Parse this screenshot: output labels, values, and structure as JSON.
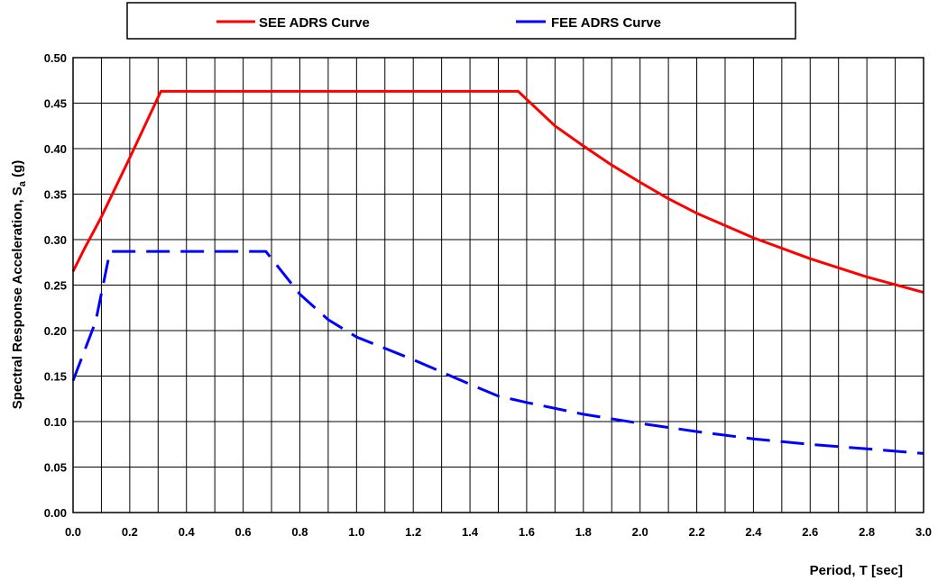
{
  "chart_data": {
    "type": "line",
    "title": "",
    "xlabel": "Period, T [sec]",
    "ylabel": {
      "prefix": "Spectral Response Acceleration, S",
      "subscript": "a",
      "suffix": " (g)"
    },
    "xlim": [
      0,
      3.0
    ],
    "ylim": [
      0,
      0.5
    ],
    "x_ticks": [
      "0.0",
      "0.2",
      "0.4",
      "0.6",
      "0.8",
      "1.0",
      "1.2",
      "1.4",
      "1.6",
      "1.8",
      "2.0",
      "2.2",
      "2.4",
      "2.6",
      "2.8",
      "3.0"
    ],
    "y_ticks": [
      "0.00",
      "0.05",
      "0.10",
      "0.15",
      "0.20",
      "0.25",
      "0.30",
      "0.35",
      "0.40",
      "0.45",
      "0.50"
    ],
    "grid": true,
    "legend_position": "top",
    "series": [
      {
        "name": "SEE ADRS Curve",
        "color": "#ff0000",
        "style": "solid",
        "x": [
          0.0,
          0.04,
          0.1,
          0.2,
          0.31,
          1.0,
          1.57,
          1.7,
          1.8,
          1.9,
          2.0,
          2.1,
          2.2,
          2.4,
          2.6,
          2.8,
          3.0
        ],
        "y": [
          0.265,
          0.29,
          0.325,
          0.39,
          0.463,
          0.463,
          0.463,
          0.425,
          0.403,
          0.382,
          0.363,
          0.345,
          0.329,
          0.302,
          0.279,
          0.259,
          0.242
        ]
      },
      {
        "name": "FEE ADRS Curve",
        "color": "#0000ff",
        "style": "dashed",
        "x": [
          0.0,
          0.08,
          0.13,
          0.4,
          0.68,
          0.8,
          0.9,
          1.0,
          1.2,
          1.4,
          1.5,
          1.6,
          1.8,
          2.0,
          2.2,
          2.4,
          2.6,
          2.8,
          3.0
        ],
        "y": [
          0.145,
          0.21,
          0.287,
          0.287,
          0.287,
          0.24,
          0.212,
          0.193,
          0.168,
          0.141,
          0.128,
          0.121,
          0.108,
          0.098,
          0.089,
          0.081,
          0.075,
          0.07,
          0.065
        ]
      }
    ]
  }
}
